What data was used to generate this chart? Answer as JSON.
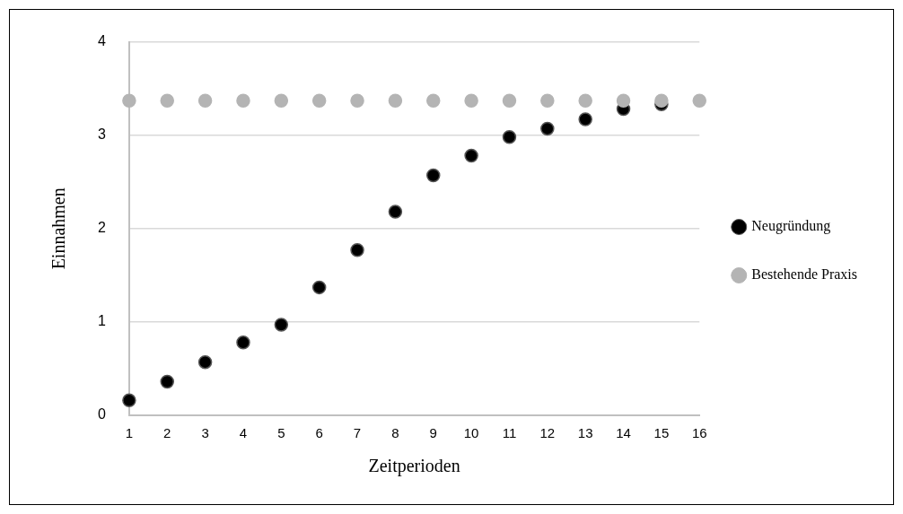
{
  "chart_data": {
    "type": "scatter",
    "xlabel": "Zeitperioden",
    "ylabel": "Einnahmen",
    "x": [
      1,
      2,
      3,
      4,
      5,
      6,
      7,
      8,
      9,
      10,
      11,
      12,
      13,
      14,
      15,
      16
    ],
    "series": [
      {
        "name": "Neugründung",
        "color": "#000000",
        "values": [
          0.16,
          0.36,
          0.57,
          0.78,
          0.97,
          1.37,
          1.77,
          2.18,
          2.57,
          2.78,
          2.98,
          3.07,
          3.17,
          3.28,
          3.33,
          null
        ]
      },
      {
        "name": "Bestehende Praxis",
        "color": "#b4b4b4",
        "values": [
          3.37,
          3.37,
          3.37,
          3.37,
          3.37,
          3.37,
          3.37,
          3.37,
          3.37,
          3.37,
          3.37,
          3.37,
          3.37,
          3.37,
          3.37,
          3.37
        ]
      }
    ],
    "xlim": [
      1,
      16
    ],
    "xticks": [
      1,
      2,
      3,
      4,
      5,
      6,
      7,
      8,
      9,
      10,
      11,
      12,
      13,
      14,
      15,
      16
    ],
    "ylim": [
      0,
      4
    ],
    "yticks": [
      0,
      1,
      2,
      3,
      4
    ],
    "grid": "y",
    "legend": "right",
    "marker": "circle"
  }
}
